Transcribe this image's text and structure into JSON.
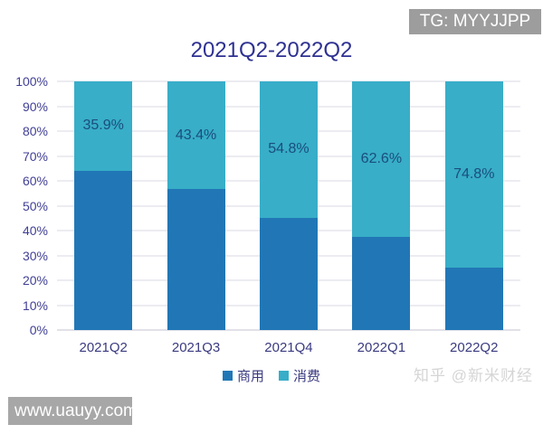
{
  "watermarks": {
    "tg_badge": "TG: MYYJJPP",
    "site_badge": "www.uauyy.com",
    "zhihu_credit": "知乎 @新米财经"
  },
  "colors": {
    "commercial_blue": "#2177B6",
    "consumer_teal": "#38AEC8",
    "title_text": "#2E3192",
    "axis_text": "#403F95",
    "data_label_text": "#1A4E7E",
    "gridline": "#d9d9e4",
    "badge_gray": "#9d9d9d"
  },
  "chart_data": {
    "type": "bar",
    "subtype": "stacked-percentage",
    "title": "2021Q2-2022Q2",
    "categories": [
      "2021Q2",
      "2021Q3",
      "2021Q4",
      "2022Q1",
      "2022Q2"
    ],
    "series": [
      {
        "name": "商用",
        "color": "#2177B6",
        "values": [
          64.1,
          56.6,
          45.2,
          37.4,
          25.2
        ],
        "labels": [
          "",
          "",
          "",
          "",
          ""
        ]
      },
      {
        "name": "消费",
        "color": "#38AEC8",
        "values": [
          35.9,
          43.4,
          54.8,
          62.6,
          74.8
        ],
        "labels": [
          "35.9%",
          "43.4%",
          "54.8%",
          "62.6%",
          "74.8%"
        ]
      }
    ],
    "y_ticks": [
      "100%",
      "90%",
      "80%",
      "70%",
      "60%",
      "50%",
      "40%",
      "30%",
      "20%",
      "10%",
      "0%"
    ],
    "ylim": [
      0,
      100
    ],
    "grid": true,
    "legend_position": "bottom"
  }
}
